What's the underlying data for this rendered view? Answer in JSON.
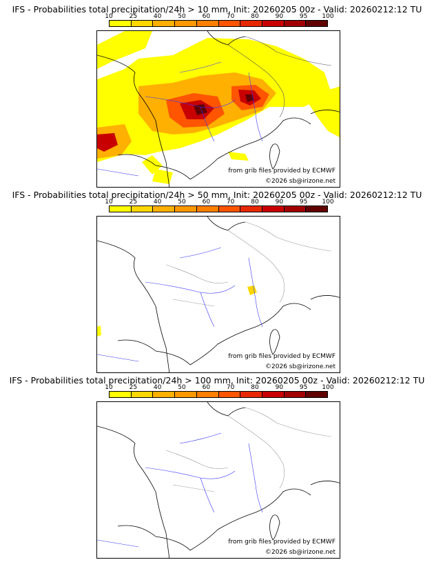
{
  "colorbar": {
    "labels": [
      "10",
      "25",
      "40",
      "50",
      "60",
      "70",
      "80",
      "90",
      "95",
      "100"
    ],
    "colors": [
      "#ffff00",
      "#ffd700",
      "#ffb000",
      "#ff9900",
      "#ff7f00",
      "#ff5500",
      "#e62800",
      "#c80000",
      "#a00000",
      "#600000"
    ]
  },
  "panels": [
    {
      "title": "IFS - Probabilities total precipitation/24h > 10 mm, Init: 20260205 00z - Valid: 20260212:12 TU",
      "source_credit": "from grib files provided by ECMWF",
      "copyright": "©2026 sb@irizone.net",
      "coverage": "wide"
    },
    {
      "title": "IFS - Probabilities total precipitation/24h > 50 mm, Init: 20260205 00z - Valid: 20260212:12 TU",
      "source_credit": "from grib files provided by ECMWF",
      "copyright": "©2026 sb@irizone.net",
      "coverage": "small"
    },
    {
      "title": "IFS - Probabilities total precipitation/24h > 100 mm, Init: 20260205 00z - Valid: 20260212:12 TU",
      "source_credit": "from grib files provided by ECMWF",
      "copyright": "©2026 sb@irizone.net",
      "coverage": "none"
    }
  ]
}
